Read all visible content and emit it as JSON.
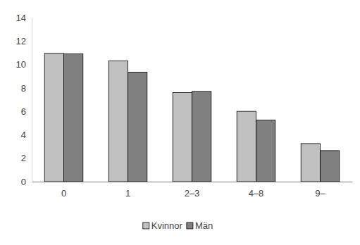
{
  "chart_data": {
    "type": "bar",
    "categories": [
      "0",
      "1",
      "2–3",
      "4–8",
      "9–"
    ],
    "series": [
      {
        "name": "Kvinnor",
        "color": "#c0c0c0",
        "values": [
          10.95,
          10.3,
          7.6,
          6.0,
          3.25
        ]
      },
      {
        "name": "Män",
        "color": "#808080",
        "values": [
          10.9,
          9.35,
          7.7,
          5.25,
          2.65
        ]
      }
    ],
    "ylim": [
      0,
      14
    ],
    "yticks": [
      0,
      2,
      4,
      6,
      8,
      10,
      12,
      14
    ],
    "grid": false,
    "legend": "bottom"
  }
}
